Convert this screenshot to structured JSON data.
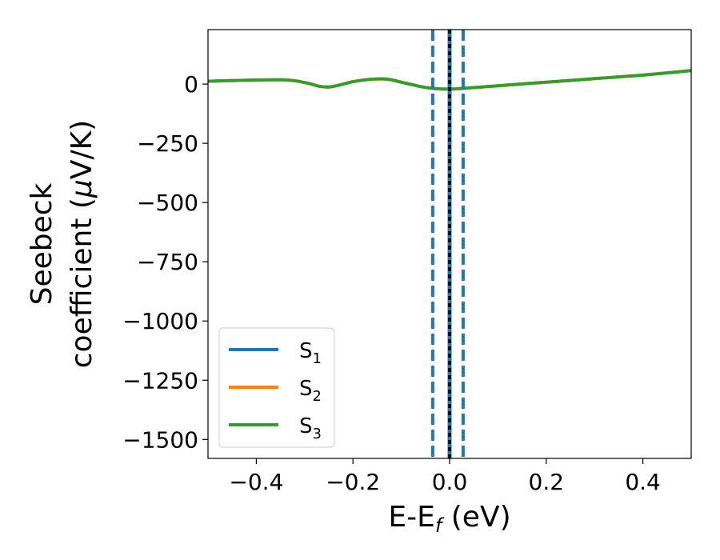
{
  "chart_data": {
    "type": "line",
    "title": "",
    "xlabel": "E-E",
    "xlabel_sub": "f",
    "xlabel_unit": " (eV)",
    "ylabel_line1": "Seebeck",
    "ylabel_line2_pre": "coefficient  (",
    "ylabel_mu": "μ",
    "ylabel_line2_post": "V/K)",
    "xlim": [
      -0.5,
      0.5
    ],
    "ylim": [
      -1580,
      230
    ],
    "x_ticks": [
      -0.4,
      -0.2,
      0.0,
      0.2,
      0.4
    ],
    "x_tick_labels": [
      "−0.4",
      "−0.2",
      "0.0",
      "0.2",
      "0.4"
    ],
    "y_ticks": [
      0,
      -250,
      -500,
      -750,
      -1000,
      -1250,
      -1500
    ],
    "y_tick_labels": [
      "0",
      "−250",
      "−500",
      "−750",
      "−1000",
      "−1250",
      "−1500"
    ],
    "grid": false,
    "legend_position": "lower-left",
    "series": [
      {
        "name": "S",
        "sub": "1",
        "color": "#1f77b4",
        "x": [
          -0.5,
          -0.45,
          -0.4,
          -0.35,
          -0.32,
          -0.29,
          -0.27,
          -0.25,
          -0.23,
          -0.2,
          -0.17,
          -0.14,
          -0.12,
          -0.1,
          -0.07,
          -0.05,
          -0.03,
          0.0,
          0.03,
          0.1,
          0.2,
          0.3,
          0.4,
          0.5
        ],
        "values": [
          12,
          15,
          17,
          18,
          14,
          2,
          -9,
          -12,
          -5,
          10,
          19,
          22,
          18,
          8,
          -6,
          -14,
          -19,
          -21,
          -18,
          -7,
          8,
          23,
          38,
          57
        ]
      },
      {
        "name": "S",
        "sub": "2",
        "color": "#ff7f0e",
        "x": [
          -0.5,
          -0.45,
          -0.4,
          -0.35,
          -0.32,
          -0.29,
          -0.27,
          -0.25,
          -0.23,
          -0.2,
          -0.17,
          -0.14,
          -0.12,
          -0.1,
          -0.07,
          -0.05,
          -0.03,
          0.0,
          0.03,
          0.1,
          0.2,
          0.3,
          0.4,
          0.5
        ],
        "values": [
          12,
          15,
          17,
          18,
          14,
          2,
          -9,
          -12,
          -5,
          10,
          19,
          22,
          18,
          8,
          -6,
          -14,
          -19,
          -21,
          -18,
          -7,
          8,
          23,
          38,
          57
        ]
      },
      {
        "name": "S",
        "sub": "3",
        "color": "#2ca02c",
        "x": [
          -0.5,
          -0.45,
          -0.4,
          -0.35,
          -0.32,
          -0.29,
          -0.27,
          -0.25,
          -0.23,
          -0.2,
          -0.17,
          -0.14,
          -0.12,
          -0.1,
          -0.07,
          -0.05,
          -0.03,
          0.0,
          0.03,
          0.1,
          0.2,
          0.3,
          0.4,
          0.5
        ],
        "values": [
          12,
          15,
          17,
          18,
          14,
          2,
          -9,
          -12,
          -5,
          10,
          19,
          22,
          18,
          8,
          -6,
          -14,
          -19,
          -21,
          -18,
          -7,
          8,
          23,
          38,
          57
        ]
      }
    ],
    "vertical_lines": [
      {
        "x": -0.035,
        "style": "dashed",
        "color": "#1f77b4"
      },
      {
        "x": 0.0,
        "style": "solid",
        "color": "#1f77b4"
      },
      {
        "x": 0.028,
        "style": "dashed",
        "color": "#1f77b4"
      },
      {
        "x": 0.0,
        "style": "dotted",
        "color": "#000000"
      }
    ]
  }
}
